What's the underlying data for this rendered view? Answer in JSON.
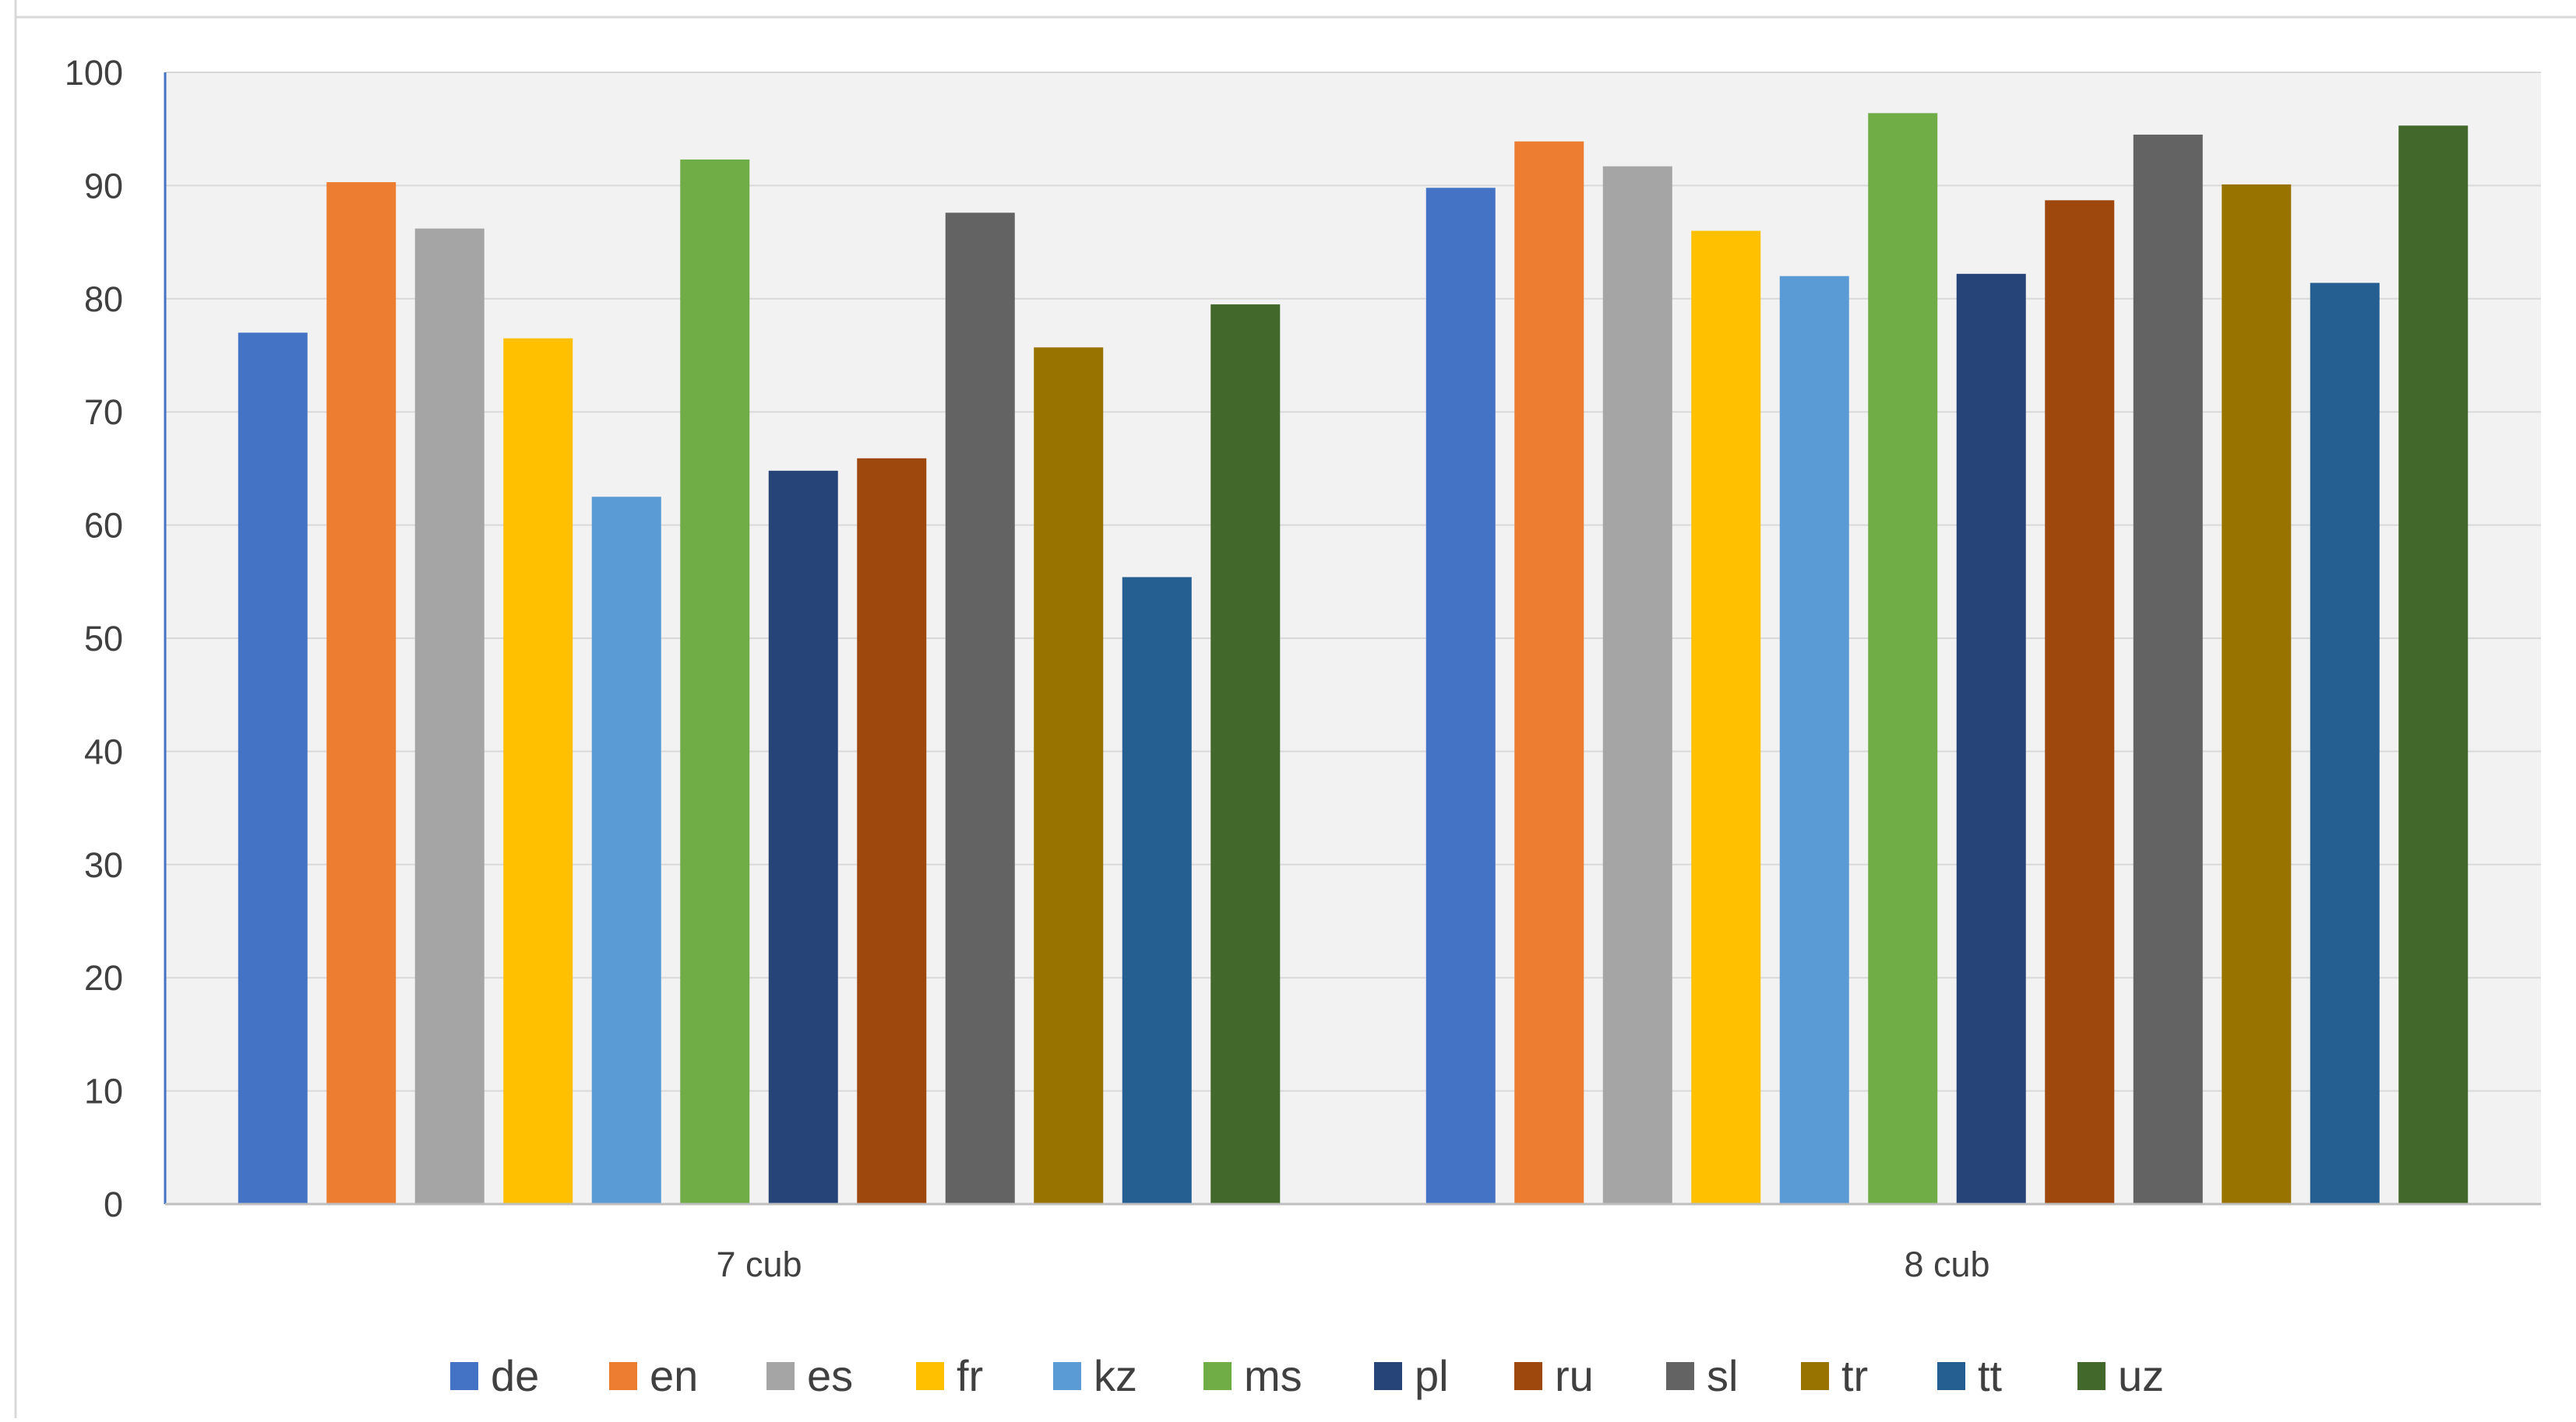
{
  "chart_data": {
    "type": "bar",
    "title": "",
    "xlabel": "",
    "ylabel": "",
    "categories": [
      "7 cub",
      "8 cub"
    ],
    "ylim": [
      0,
      100
    ],
    "yticks": [
      0,
      10,
      20,
      30,
      40,
      50,
      60,
      70,
      80,
      90,
      100
    ],
    "grid": true,
    "legend_position": "bottom",
    "series": [
      {
        "name": "de",
        "color": "#4472C4",
        "values": [
          77,
          89.8
        ]
      },
      {
        "name": "en",
        "color": "#ED7D31",
        "values": [
          90.3,
          93.9
        ]
      },
      {
        "name": "es",
        "color": "#A5A5A5",
        "values": [
          86.2,
          91.7
        ]
      },
      {
        "name": "fr",
        "color": "#FFC000",
        "values": [
          76.5,
          86
        ]
      },
      {
        "name": "kz",
        "color": "#5B9BD5",
        "values": [
          62.5,
          82
        ]
      },
      {
        "name": "ms",
        "color": "#70AD47",
        "values": [
          92.3,
          96.4
        ]
      },
      {
        "name": "pl",
        "color": "#264478",
        "values": [
          64.8,
          82.2
        ]
      },
      {
        "name": "ru",
        "color": "#9E480E",
        "values": [
          65.9,
          88.7
        ]
      },
      {
        "name": "sl",
        "color": "#636363",
        "values": [
          87.6,
          94.5
        ]
      },
      {
        "name": "tr",
        "color": "#997300",
        "values": [
          75.7,
          90.1
        ]
      },
      {
        "name": "tt",
        "color": "#255E91",
        "values": [
          55.4,
          81.4
        ]
      },
      {
        "name": "uz",
        "color": "#43682B",
        "values": [
          79.5,
          95.3
        ]
      }
    ]
  }
}
